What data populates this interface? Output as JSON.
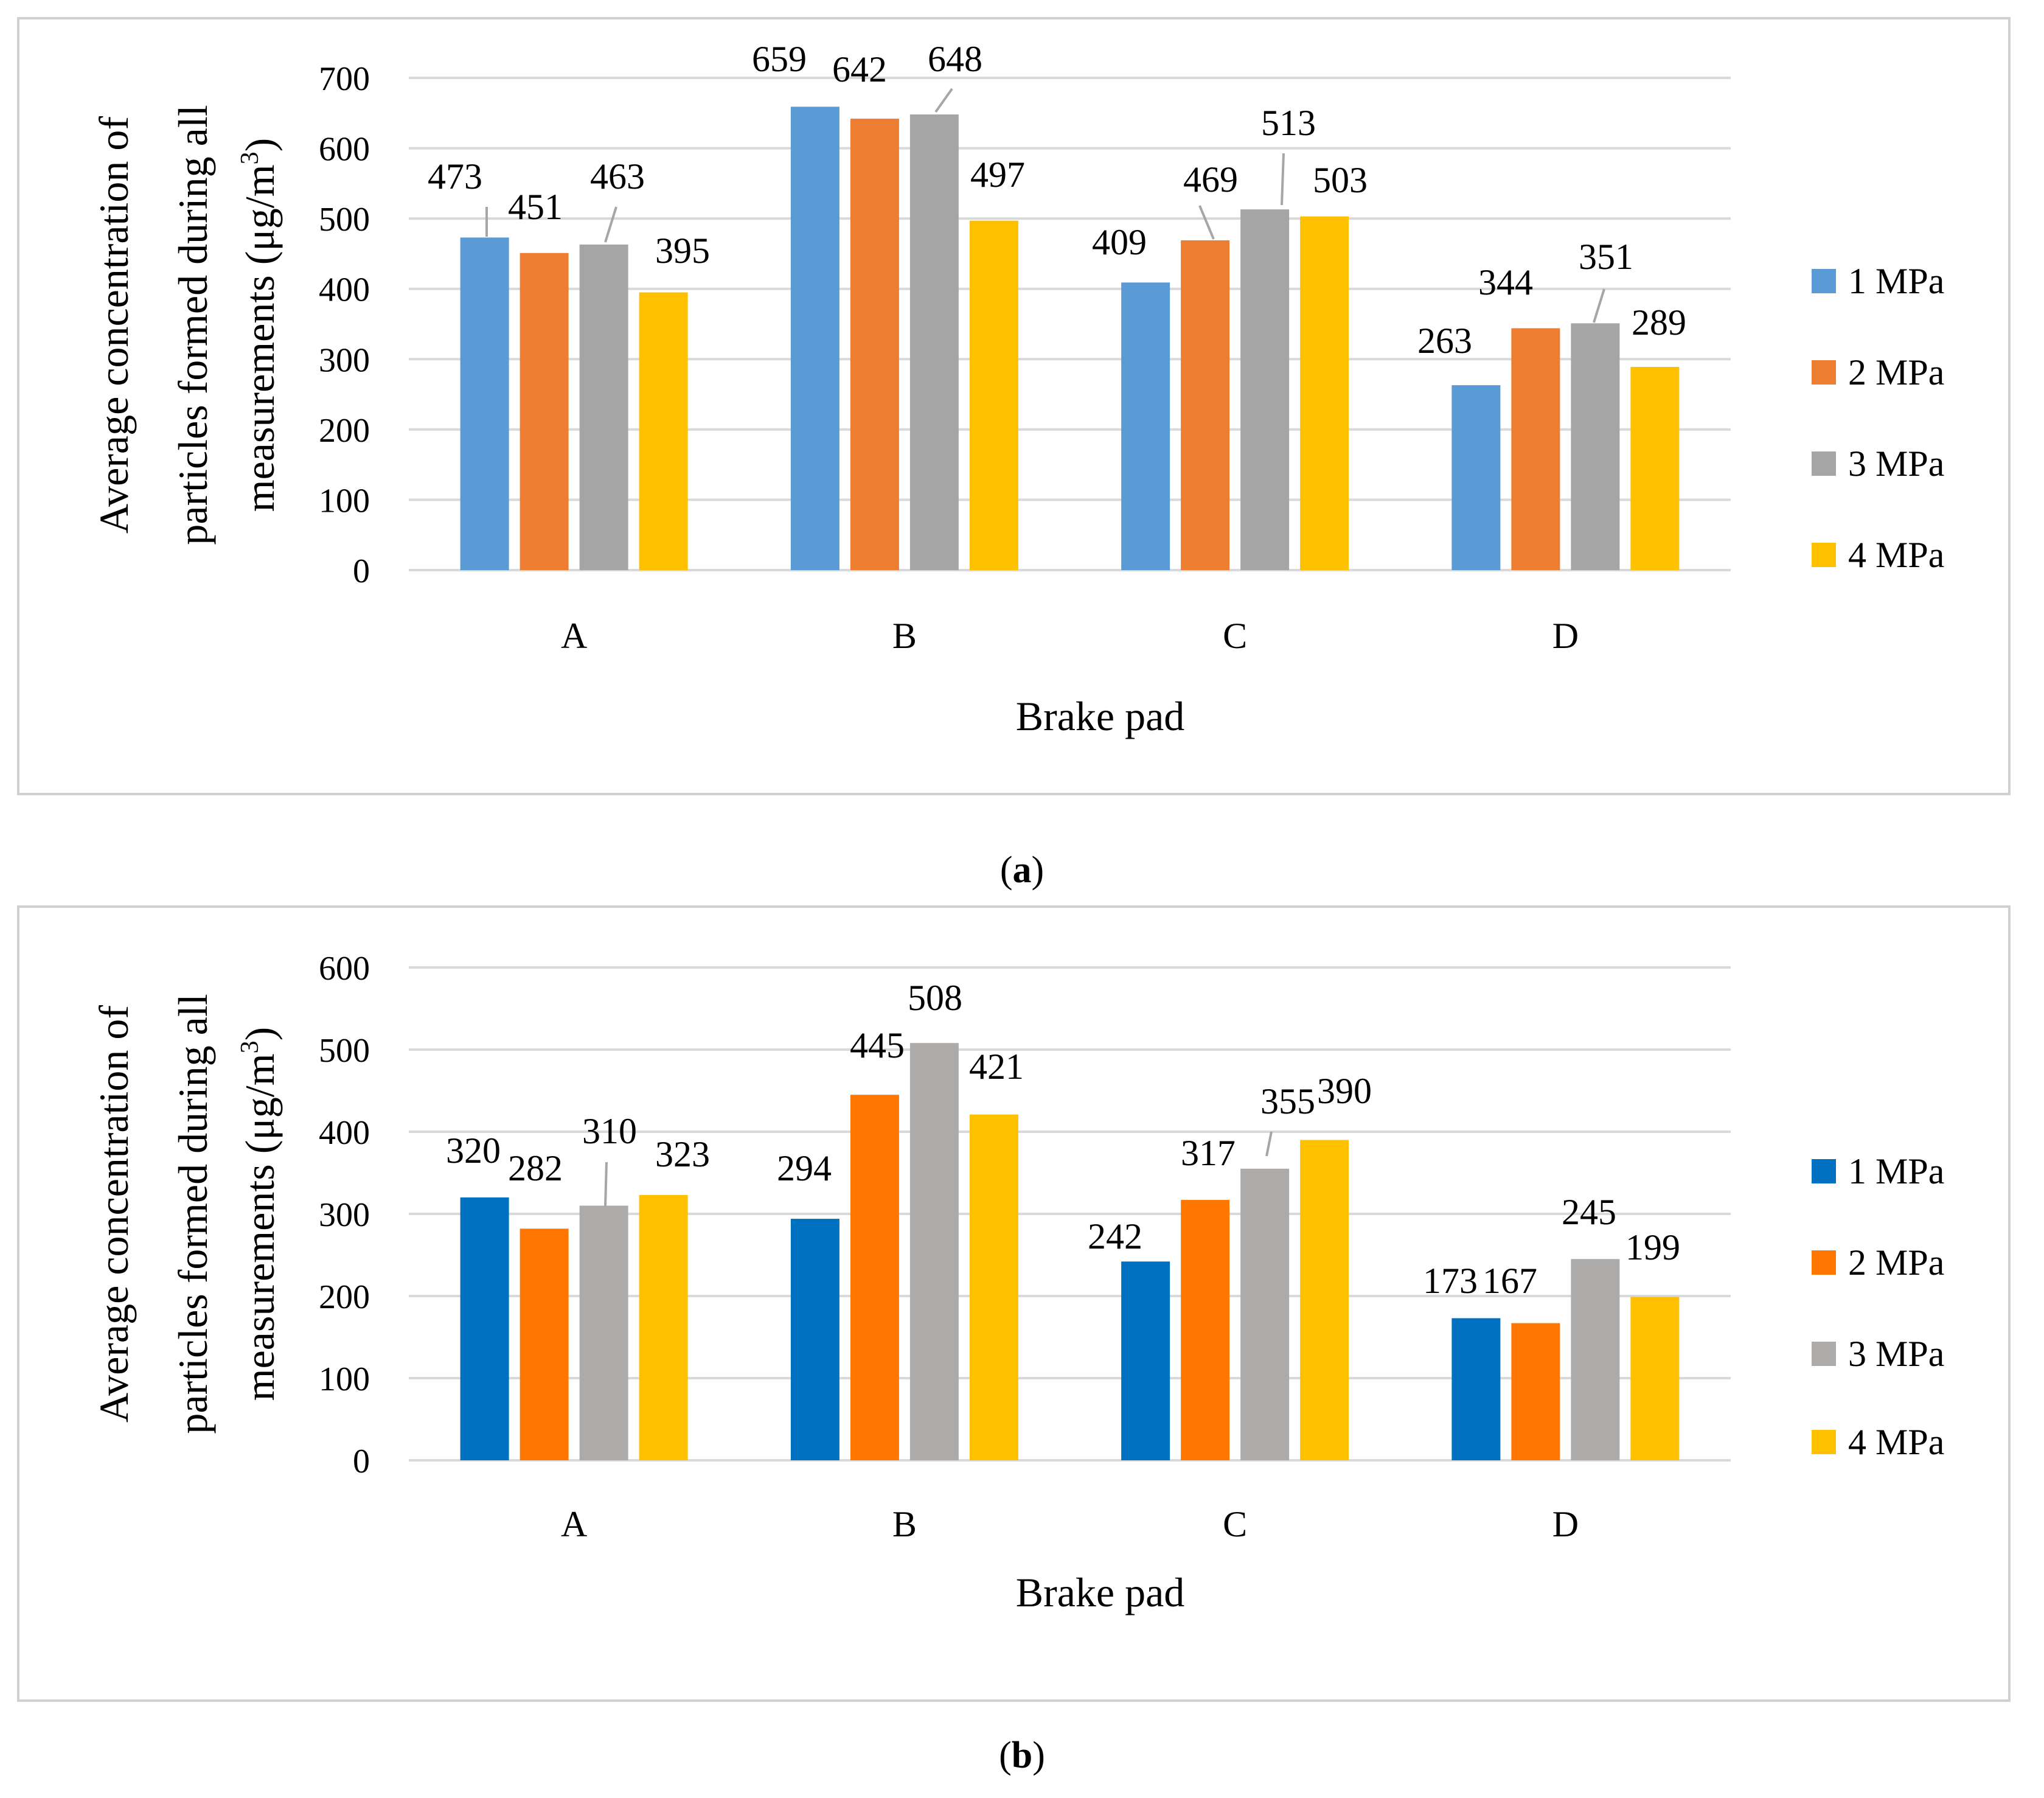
{
  "chart_data": [
    {
      "type": "bar",
      "panel": "a",
      "caption_prefix": "(",
      "caption_letter": "a",
      "caption_suffix": ")",
      "categories": [
        "A",
        "B",
        "C",
        "D"
      ],
      "series": [
        {
          "name": "1 MPa",
          "color": "#5B9BD5",
          "values": [
            473,
            659,
            409,
            263
          ]
        },
        {
          "name": "2 MPa",
          "color": "#ED7D31",
          "values": [
            451,
            642,
            469,
            344
          ]
        },
        {
          "name": "3 MPa",
          "color": "#A5A5A5",
          "values": [
            463,
            648,
            513,
            351
          ]
        },
        {
          "name": "4 MPa",
          "color": "#FFC000",
          "values": [
            395,
            497,
            503,
            289
          ]
        }
      ],
      "xlabel": "Brake pad",
      "ylabel_lines": [
        "Average concentration of",
        "particles formed during all",
        "measurements (μg/m",
        "3",
        ")"
      ],
      "ylim": [
        0,
        700
      ],
      "yticks": [
        "0",
        "100",
        "200",
        "300",
        "400",
        "500",
        "600",
        "700"
      ],
      "grid": true,
      "legend": "right"
    },
    {
      "type": "bar",
      "panel": "b",
      "caption_prefix": "(",
      "caption_letter": "b",
      "caption_suffix": ")",
      "categories": [
        "A",
        "B",
        "C",
        "D"
      ],
      "series": [
        {
          "name": "1 MPa",
          "color": "#0070C0",
          "values": [
            320,
            294,
            242,
            173
          ]
        },
        {
          "name": "2 MPa",
          "color": "#FF7700",
          "values": [
            282,
            445,
            317,
            167
          ]
        },
        {
          "name": "3 MPa",
          "color": "#ADAAAA",
          "values": [
            310,
            508,
            355,
            245
          ]
        },
        {
          "name": "4 MPa",
          "color": "#FFC000",
          "values": [
            323,
            421,
            390,
            199
          ]
        }
      ],
      "xlabel": "Brake pad",
      "ylabel_lines": [
        "Average concentration of",
        "particles formed during all",
        "measurements  (μg/m",
        "3",
        ")"
      ],
      "ylim": [
        0,
        600
      ],
      "yticks": [
        "0",
        "100",
        "200",
        "300",
        "400",
        "500",
        "600"
      ],
      "grid": true,
      "legend": "right"
    }
  ]
}
